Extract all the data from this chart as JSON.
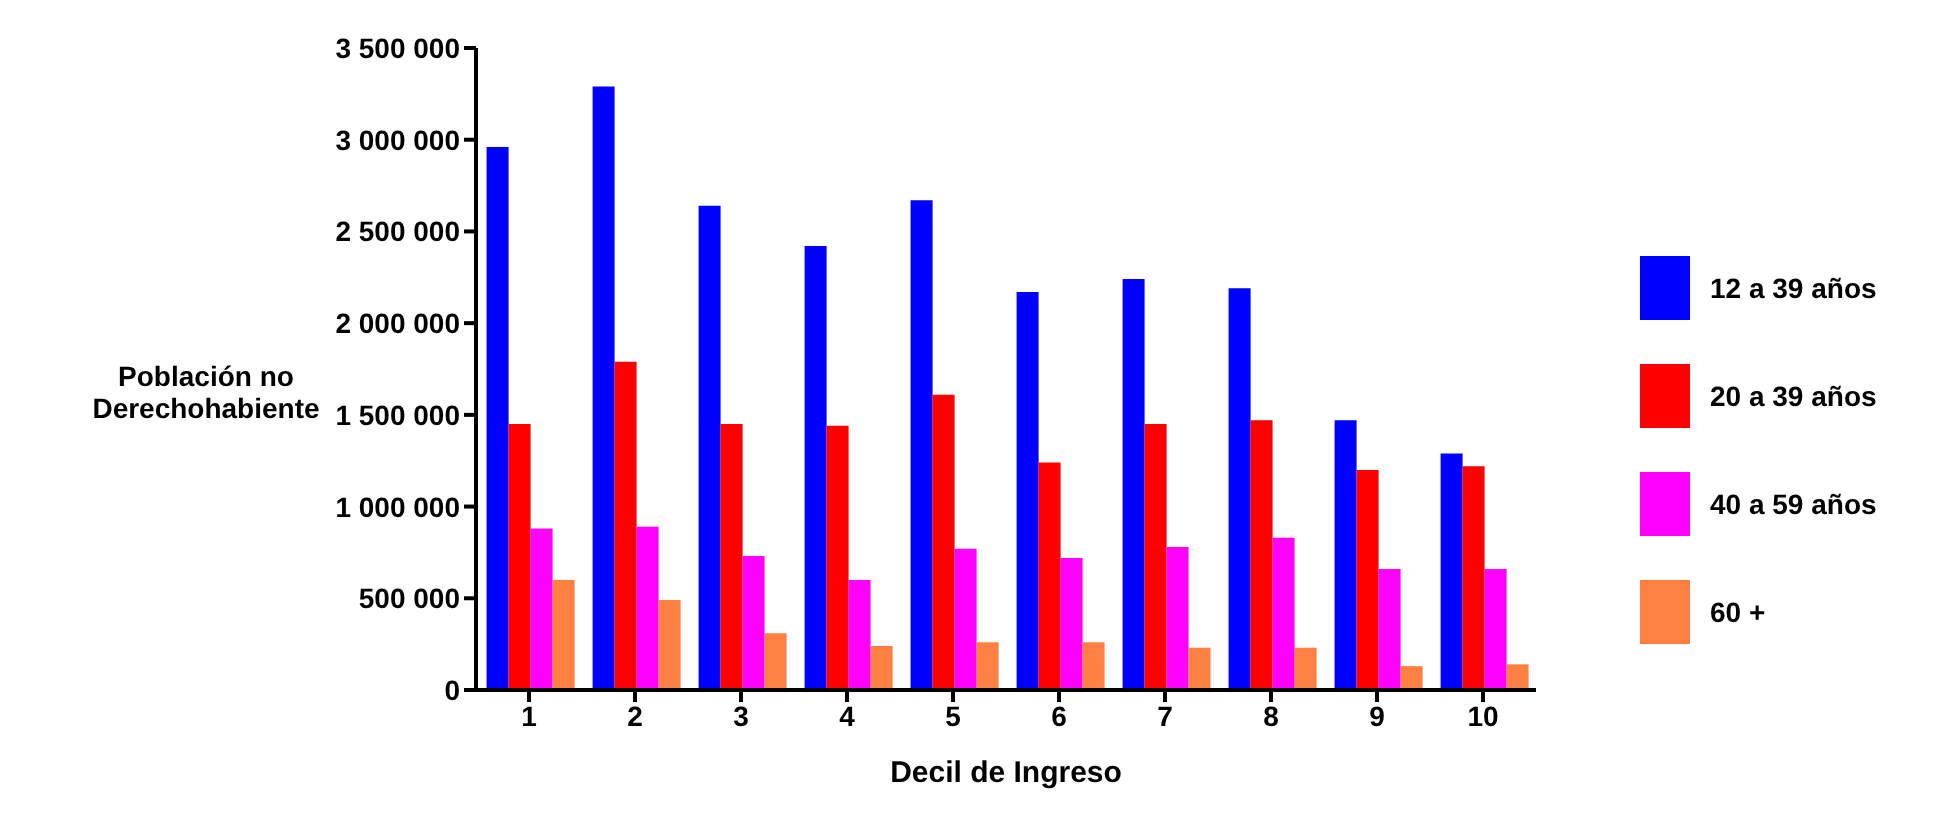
{
  "chart_data": {
    "type": "bar",
    "xlabel": "Decil de Ingreso",
    "ylabel": "Población no Derechohabiente",
    "categories": [
      "1",
      "2",
      "3",
      "4",
      "5",
      "6",
      "7",
      "8",
      "9",
      "10"
    ],
    "series": [
      {
        "name": "12 a 39 años",
        "color": "#0000ff",
        "values": [
          2960000,
          3290000,
          2640000,
          2420000,
          2670000,
          2170000,
          2240000,
          2190000,
          1470000,
          1290000
        ]
      },
      {
        "name": "20 a 39 años",
        "color": "#ff0000",
        "values": [
          1450000,
          1790000,
          1450000,
          1440000,
          1610000,
          1240000,
          1450000,
          1470000,
          1200000,
          1220000
        ]
      },
      {
        "name": "40 a 59 años",
        "color": "#ff00ff",
        "values": [
          880000,
          890000,
          730000,
          600000,
          770000,
          720000,
          780000,
          830000,
          660000,
          660000
        ]
      },
      {
        "name": "60 +",
        "color": "#ff8040",
        "values": [
          600000,
          490000,
          310000,
          240000,
          260000,
          260000,
          230000,
          230000,
          130000,
          140000
        ]
      }
    ],
    "ylim": [
      0,
      3500000
    ],
    "yticks": [
      {
        "value": 0,
        "label": "0"
      },
      {
        "value": 500000,
        "label": "500 000"
      },
      {
        "value": 1000000,
        "label": "1 000 000"
      },
      {
        "value": 1500000,
        "label": "1 500 000"
      },
      {
        "value": 2000000,
        "label": "2 000 000"
      },
      {
        "value": 2500000,
        "label": "2 500 000"
      },
      {
        "value": 3000000,
        "label": "3 000 000"
      },
      {
        "value": 3500000,
        "label": "3 500 000"
      }
    ],
    "grid": false,
    "legend": "right"
  }
}
